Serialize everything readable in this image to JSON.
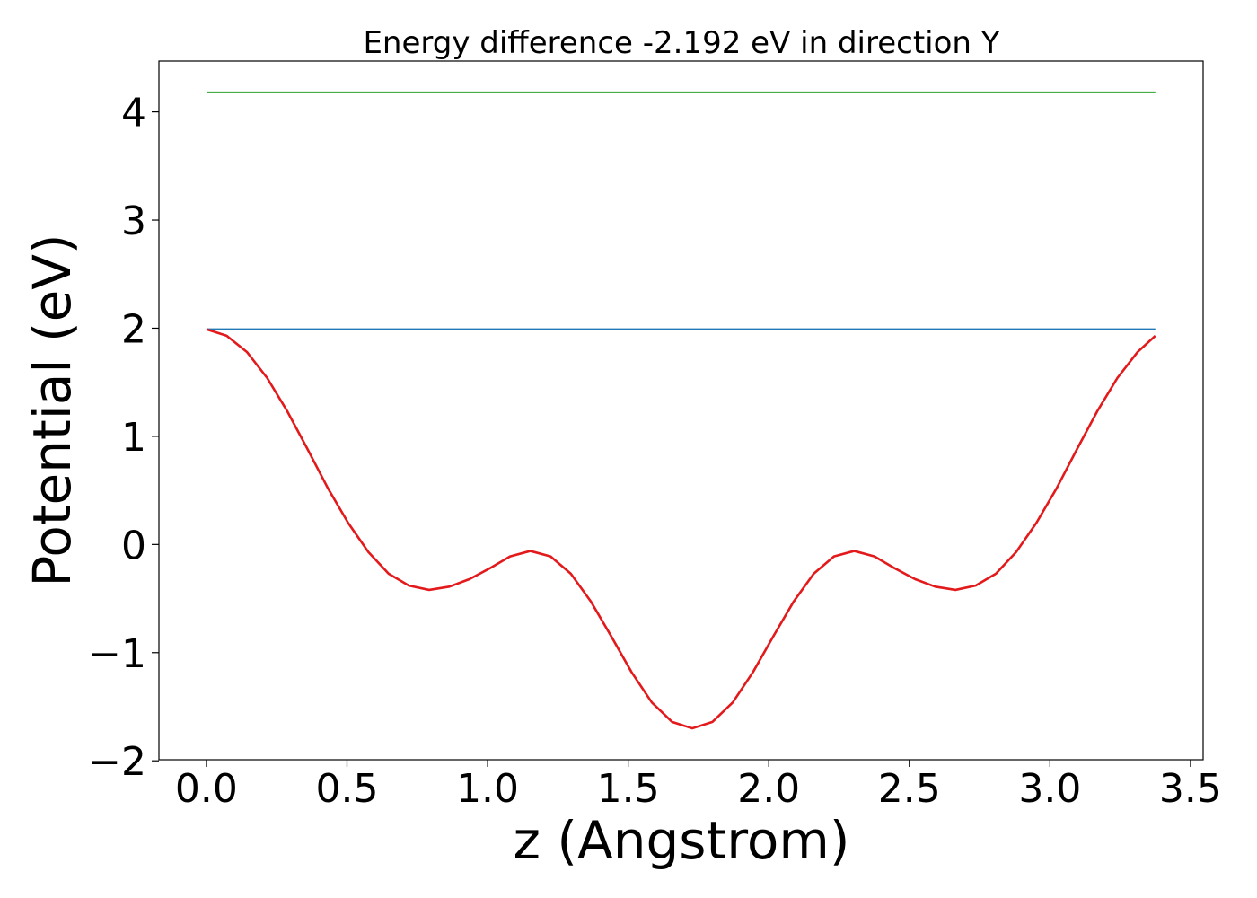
{
  "chart_data": {
    "type": "line",
    "title": "Energy difference -2.192 eV in direction Y",
    "xlabel": "z (Angstrom)",
    "ylabel": "Potential (eV)",
    "xlim": [
      -0.169,
      3.545
    ],
    "ylim": [
      -1.99,
      4.47
    ],
    "x_ticks": [
      0.0,
      0.5,
      1.0,
      1.5,
      2.0,
      2.5,
      3.0,
      3.5
    ],
    "x_tick_labels": [
      "0.0",
      "0.5",
      "1.0",
      "1.5",
      "2.0",
      "2.5",
      "3.0",
      "3.5"
    ],
    "y_ticks": [
      -2,
      -1,
      0,
      1,
      2,
      3,
      4
    ],
    "y_tick_labels": [
      "−2",
      "−1",
      "0",
      "1",
      "2",
      "3",
      "4"
    ],
    "grid": false,
    "series": [
      {
        "color": "#2ca02c",
        "x": [
          0.0,
          3.375
        ],
        "y": [
          4.18,
          4.18
        ]
      },
      {
        "color": "#1f77b4",
        "x": [
          0.0,
          3.375
        ],
        "y": [
          1.99,
          1.99
        ]
      },
      {
        "color": "#e31a1c",
        "x": [
          0.0,
          0.072,
          0.144,
          0.216,
          0.288,
          0.36,
          0.432,
          0.504,
          0.576,
          0.648,
          0.72,
          0.792,
          0.864,
          0.936,
          1.008,
          1.08,
          1.152,
          1.224,
          1.296,
          1.368,
          1.44,
          1.512,
          1.584,
          1.656,
          1.728,
          1.8,
          1.872,
          1.944,
          2.016,
          2.088,
          2.16,
          2.232,
          2.304,
          2.376,
          2.448,
          2.52,
          2.592,
          2.664,
          2.736,
          2.808,
          2.88,
          2.952,
          3.024,
          3.096,
          3.168,
          3.24,
          3.312,
          3.375
        ],
        "y": [
          1.99,
          1.93,
          1.78,
          1.54,
          1.23,
          0.88,
          0.52,
          0.2,
          -0.07,
          -0.27,
          -0.38,
          -0.42,
          -0.39,
          -0.32,
          -0.22,
          -0.11,
          -0.06,
          -0.11,
          -0.27,
          -0.53,
          -0.85,
          -1.18,
          -1.46,
          -1.64,
          -1.7,
          -1.64,
          -1.46,
          -1.18,
          -0.85,
          -0.53,
          -0.27,
          -0.11,
          -0.06,
          -0.11,
          -0.22,
          -0.32,
          -0.39,
          -0.42,
          -0.38,
          -0.27,
          -0.07,
          0.2,
          0.52,
          0.88,
          1.23,
          1.54,
          1.78,
          1.93
        ]
      }
    ]
  }
}
